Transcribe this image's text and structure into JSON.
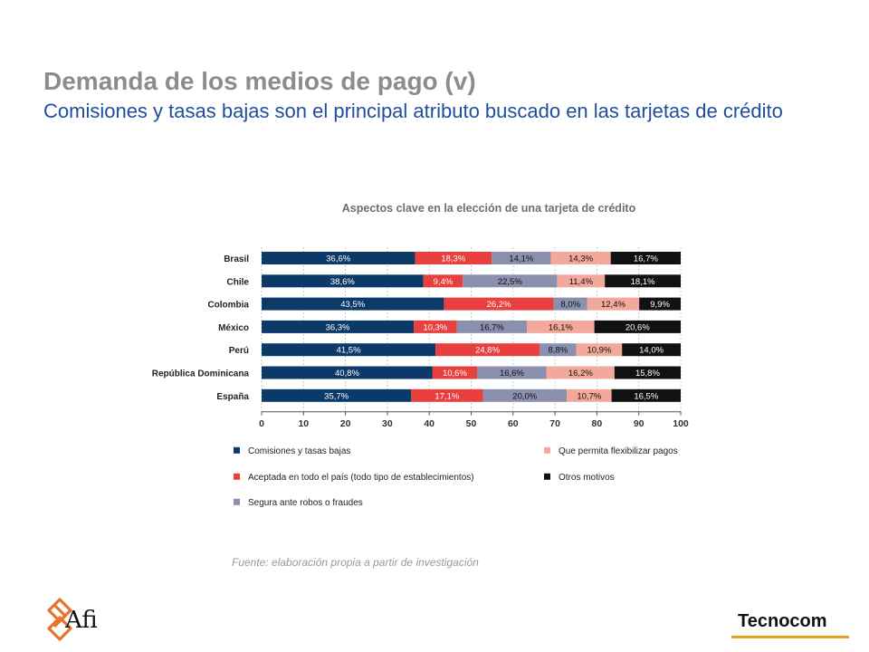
{
  "header": {
    "title": "Demanda de los medios de pago (v)",
    "subtitle": "Comisiones y tasas bajas son el principal atributo buscado en las tarjetas de crédito"
  },
  "chart_data": {
    "type": "bar",
    "orientation": "horizontal",
    "stacked": true,
    "title": "Aspectos clave en la elección de una tarjeta de crédito",
    "categories": [
      "Brasil",
      "Chile",
      "Colombia",
      "México",
      "Perú",
      "República Dominicana",
      "España"
    ],
    "xlim": [
      0,
      100
    ],
    "xticks": [
      0,
      10,
      20,
      30,
      40,
      50,
      60,
      70,
      80,
      90,
      100
    ],
    "grid": true,
    "legend_position": "bottom",
    "series": [
      {
        "name": "Comisiones y tasas bajas",
        "color": "#0b3a68",
        "label_color": "#ffffff",
        "values": [
          36.6,
          38.6,
          43.5,
          36.3,
          41.5,
          40.8,
          35.7
        ],
        "labels": [
          "36,6%",
          "38,6%",
          "43,5%",
          "36,3%",
          "41,5%",
          "40,8%",
          "35,7%"
        ]
      },
      {
        "name": "Aceptada en todo el país (todo tipo de establecimientos)",
        "color": "#e8403e",
        "label_color": "#ffffff",
        "values": [
          18.3,
          9.4,
          26.2,
          10.3,
          24.8,
          10.6,
          17.1
        ],
        "labels": [
          "18,3%",
          "9,4%",
          "26,2%",
          "10,3%",
          "24,8%",
          "10,6%",
          "17,1%"
        ]
      },
      {
        "name": "Segura ante robos o fraudes",
        "color": "#8a90ad",
        "label_color": "#111111",
        "values": [
          14.1,
          22.5,
          8.0,
          16.7,
          8.8,
          16.6,
          20.0
        ],
        "labels": [
          "14,1%",
          "22,5%",
          "8,0%",
          "16,7%",
          "8,8%",
          "16,6%",
          "20,0%"
        ]
      },
      {
        "name": "Que permita flexibilizar pagos",
        "color": "#f2a89a",
        "label_color": "#111111",
        "values": [
          14.3,
          11.4,
          12.4,
          16.1,
          10.9,
          16.2,
          10.7
        ],
        "labels": [
          "14,3%",
          "11,4%",
          "12,4%",
          "16,1%",
          "10,9%",
          "16,2%",
          "10,7%"
        ]
      },
      {
        "name": "Otros motivos",
        "color": "#111111",
        "label_color": "#ffffff",
        "values": [
          16.7,
          18.1,
          9.9,
          20.6,
          14.0,
          15.8,
          16.5
        ],
        "labels": [
          "16,7%",
          "18,1%",
          "9,9%",
          "20,6%",
          "14,0%",
          "15,8%",
          "16,5%"
        ]
      }
    ]
  },
  "source": "Fuente: elaboración propia a partir de investigación",
  "logos": {
    "afi": "Afi",
    "tecnocom": "Tecnocom",
    "afi_icon": "afi-knot-logo-icon",
    "afi_color": "#e8742a",
    "tecnocom_accent": "#e8a020"
  }
}
